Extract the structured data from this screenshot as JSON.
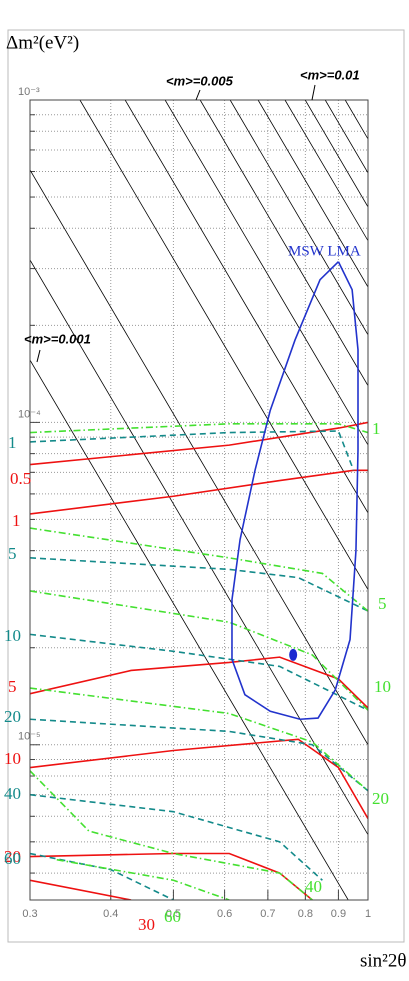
{
  "chart_data": {
    "type": "line",
    "x_label": "sin²2θ",
    "y_label": "Δm²(eV²)",
    "xlog": true,
    "ylog": true,
    "xlim": [
      0.3,
      1
    ],
    "ylim": [
      3.3e-06,
      0.001
    ],
    "xticks": [
      0.3,
      0.4,
      0.5,
      0.6,
      0.7,
      0.8,
      0.9,
      1
    ],
    "yticks": [
      {
        "value": 0.001,
        "label": "10⁻³"
      },
      {
        "value": 0.0001,
        "label": "10⁻⁴"
      },
      {
        "value": 1e-05,
        "label": "10⁻⁵"
      }
    ],
    "yminorticks": [
      4e-06,
      5e-06,
      6e-06,
      7e-06,
      8e-06,
      9e-06,
      2e-05,
      3e-05,
      4e-05,
      5e-05,
      6e-05,
      7e-05,
      8e-05,
      9e-05,
      0.0002,
      0.0003,
      0.0004,
      0.0005,
      0.0006,
      0.0007,
      0.0008,
      0.0009
    ],
    "grid": true,
    "series": [
      {
        "color": "#000000",
        "linestyle": "solid",
        "x": [
          0.3,
          1.0
        ],
        "values": [
          0.000607,
          1e-05
        ]
      },
      {
        "color": "#000000",
        "linestyle": "solid",
        "x": [
          0.3,
          1.0
        ],
        "values": [
          0.000319,
          5.26e-06
        ]
      },
      {
        "color": "#000000",
        "linestyle": "solid",
        "x": [
          0.3,
          0.932
        ],
        "values": [
          0.000156,
          3.3e-06
        ]
      },
      {
        "color": "#000000",
        "linestyle": "solid",
        "x": [
          0.3584,
          1.0
        ],
        "values": [
          0.001,
          3.03e-05
        ]
      },
      {
        "color": "#000000",
        "linestyle": "solid",
        "x": [
          0.421,
          1.0
        ],
        "values": [
          0.001,
          5.24e-05
        ]
      },
      {
        "color": "#000000",
        "linestyle": "solid",
        "x": [
          0.4854,
          1.0
        ],
        "values": [
          0.001,
          8.51e-05
        ]
      },
      {
        "color": "#000000",
        "linestyle": "solid",
        "x": [
          0.55,
          1.0
        ],
        "values": [
          0.001,
          0.00013
        ]
      },
      {
        "color": "#000000",
        "linestyle": "solid",
        "x": [
          0.612,
          1.0
        ],
        "values": [
          0.001,
          0.000187
        ]
      },
      {
        "color": "#000000",
        "linestyle": "solid",
        "x": [
          0.676,
          1.0
        ],
        "values": [
          0.001,
          0.000263
        ]
      },
      {
        "color": "#000000",
        "linestyle": "solid",
        "x": [
          0.744,
          1.0
        ],
        "values": [
          0.001,
          0.000366
        ]
      },
      {
        "color": "#000000",
        "linestyle": "solid",
        "x": [
          0.7996,
          1.0
        ],
        "values": [
          0.001,
          0.000466
        ]
      },
      {
        "color": "#000000",
        "linestyle": "solid",
        "x": [
          0.8587,
          1.0
        ],
        "values": [
          0.001,
          0.000594
        ]
      },
      {
        "color": "#000000",
        "linestyle": "solid",
        "x": [
          0.922,
          1.0
        ],
        "values": [
          0.001,
          0.000757
        ]
      },
      {
        "color": "#ee1111",
        "linestyle": "solid",
        "x": [
          0.3,
          0.61,
          0.9,
          1.0
        ],
        "values": [
          7.4e-05,
          8.5e-05,
          9.6e-05,
          0.0001
        ]
      },
      {
        "color": "#ee1111",
        "linestyle": "solid",
        "x": [
          0.3,
          0.5,
          0.73,
          0.95,
          1.0
        ],
        "values": [
          5.2e-05,
          5.9e-05,
          6.6e-05,
          7.1e-05,
          7.1e-05
        ]
      },
      {
        "color": "#ee1111",
        "linestyle": "solid",
        "x": [
          0.3,
          0.43,
          0.61,
          0.73,
          0.9,
          1.0
        ],
        "values": [
          1.44e-05,
          1.7e-05,
          1.8e-05,
          1.87e-05,
          1.6e-05,
          1.3e-05
        ]
      },
      {
        "color": "#ee1111",
        "linestyle": "solid",
        "x": [
          0.3,
          0.5,
          0.78,
          0.9,
          1.0
        ],
        "values": [
          8.5e-06,
          9.6e-06,
          1.04e-05,
          8.5e-06,
          5.9e-06
        ]
      },
      {
        "color": "#ee1111",
        "linestyle": "solid",
        "x": [
          0.3,
          0.5,
          0.61,
          0.73,
          0.82
        ],
        "values": [
          4.5e-06,
          4.6e-06,
          4.6e-06,
          4e-06,
          3.3e-06
        ]
      },
      {
        "color": "#ee1111",
        "linestyle": "solid",
        "x": [
          0.3,
          0.43
        ],
        "values": [
          3.8e-06,
          3.3e-06
        ]
      },
      {
        "color": "#138a8a",
        "linestyle": "dashed",
        "x": [
          0.3,
          0.61,
          0.9,
          0.95
        ],
        "values": [
          8.7e-05,
          9.3e-05,
          9.4e-05,
          7.1e-05
        ]
      },
      {
        "color": "#138a8a",
        "linestyle": "dashed",
        "x": [
          0.3,
          0.61,
          0.78,
          1.0
        ],
        "values": [
          3.8e-05,
          3.5e-05,
          3.3e-05,
          2.6e-05
        ]
      },
      {
        "color": "#138a8a",
        "linestyle": "dashed",
        "x": [
          0.3,
          0.5,
          0.73,
          1.0
        ],
        "values": [
          2.2e-05,
          1.95e-05,
          1.75e-05,
          1.28e-05
        ]
      },
      {
        "color": "#138a8a",
        "linestyle": "dashed",
        "x": [
          0.3,
          0.61,
          0.82,
          1.0
        ],
        "values": [
          1.2e-05,
          1.1e-05,
          1e-05,
          7.2e-06
        ]
      },
      {
        "color": "#138a8a",
        "linestyle": "dashed",
        "x": [
          0.3,
          0.5,
          0.73,
          0.85
        ],
        "values": [
          7e-06,
          6.2e-06,
          5e-06,
          3.8e-06
        ]
      },
      {
        "color": "#138a8a",
        "linestyle": "dashed",
        "x": [
          0.3,
          0.4,
          0.5
        ],
        "values": [
          4.6e-06,
          4.1e-06,
          3.3e-06
        ]
      },
      {
        "color": "#44e030",
        "linestyle": "dashdot",
        "x": [
          0.3,
          0.61,
          0.9,
          1.0
        ],
        "values": [
          9.3e-05,
          9.9e-05,
          9.9e-05,
          9.3e-05
        ]
      },
      {
        "color": "#44e030",
        "linestyle": "dashdot",
        "x": [
          0.3,
          0.61,
          0.85,
          1.0
        ],
        "values": [
          4.7e-05,
          3.8e-05,
          3.4e-05,
          2.6e-05
        ]
      },
      {
        "color": "#44e030",
        "linestyle": "dashdot",
        "x": [
          0.3,
          0.61,
          0.82,
          1.0
        ],
        "values": [
          3e-05,
          2.4e-05,
          1.9e-05,
          1.28e-05
        ]
      },
      {
        "color": "#44e030",
        "linestyle": "dashdot",
        "x": [
          0.3,
          0.61,
          0.82,
          1.0
        ],
        "values": [
          1.5e-05,
          1.25e-05,
          1.02e-05,
          7.2e-06
        ]
      },
      {
        "color": "#44e030",
        "linestyle": "dashdot",
        "x": [
          0.3,
          0.37,
          0.5,
          0.73,
          0.82
        ],
        "values": [
          8.3e-06,
          5.4e-06,
          4.6e-06,
          4e-06,
          3.3e-06
        ]
      },
      {
        "color": "#44e030",
        "linestyle": "dashdot",
        "x": [
          0.33,
          0.5,
          0.61
        ],
        "values": [
          4.4e-06,
          3.8e-06,
          3.3e-06
        ]
      },
      {
        "color": "#2233cc",
        "linestyle": "solid",
        "x": [
          0.9,
          0.945,
          0.965,
          0.965,
          0.958,
          0.938,
          0.89,
          0.837,
          0.785,
          0.706,
          0.645,
          0.616,
          0.616,
          0.634,
          0.669,
          0.706,
          0.771,
          0.843,
          0.9
        ],
        "values": [
          0.000315,
          0.000258,
          0.000168,
          8.2e-05,
          4e-05,
          2.12e-05,
          1.48e-05,
          1.21e-05,
          1.2e-05,
          1.27e-05,
          1.43e-05,
          1.84e-05,
          2.82e-05,
          4.33e-05,
          7.13e-05,
          0.000109,
          0.00018,
          0.000277,
          0.000315
        ]
      }
    ],
    "points": {
      "color": "#1a2ad0",
      "x": [
        0.766
      ],
      "values": [
        1.9e-05
      ]
    },
    "annotations": [
      {
        "text": "<m>=0.005",
        "color": "#000000"
      },
      {
        "text": "<m>=0.01",
        "color": "#000000"
      },
      {
        "text": "<m>=0.001",
        "color": "#000000"
      },
      {
        "text": "MSW LMA",
        "color": "#2233cc"
      },
      {
        "text": "0.5",
        "color": "#ee1111"
      },
      {
        "text": "1",
        "color": "#ee1111"
      },
      {
        "text": "5",
        "color": "#ee1111"
      },
      {
        "text": "10",
        "color": "#ee1111"
      },
      {
        "text": "20",
        "color": "#ee1111"
      },
      {
        "text": "30",
        "color": "#ee1111"
      },
      {
        "text": "1",
        "color": "#138a8a"
      },
      {
        "text": "5",
        "color": "#138a8a"
      },
      {
        "text": "10",
        "color": "#138a8a"
      },
      {
        "text": "20",
        "color": "#138a8a"
      },
      {
        "text": "40",
        "color": "#138a8a"
      },
      {
        "text": "60",
        "color": "#138a8a"
      },
      {
        "text": "1",
        "color": "#44e030"
      },
      {
        "text": "5",
        "color": "#44e030"
      },
      {
        "text": "10",
        "color": "#44e030"
      },
      {
        "text": "20",
        "color": "#44e030"
      },
      {
        "text": "40",
        "color": "#44e030"
      },
      {
        "text": "60",
        "color": "#44e030"
      }
    ]
  }
}
